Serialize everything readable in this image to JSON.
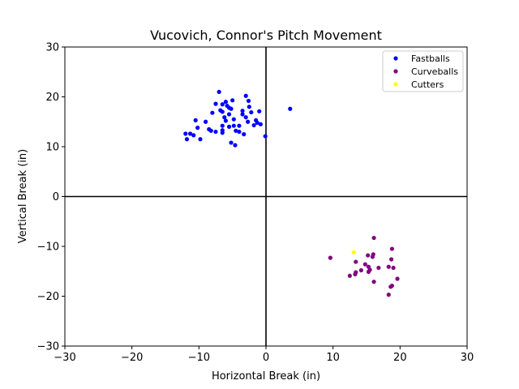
{
  "chart_data": {
    "type": "scatter",
    "title": "Vucovich, Connor's Pitch Movement",
    "xlabel": "Horizontal Break (in)",
    "ylabel": "Vertical Break (in)",
    "xlim": [
      -30,
      30
    ],
    "ylim": [
      -30,
      30
    ],
    "xticks": [
      -30,
      -20,
      -10,
      0,
      10,
      20,
      30
    ],
    "yticks": [
      -30,
      -20,
      -10,
      0,
      10,
      20,
      30
    ],
    "xtick_labels": [
      "−30",
      "−20",
      "−10",
      "0",
      "10",
      "20",
      "30"
    ],
    "ytick_labels": [
      "−30",
      "−20",
      "−10",
      "0",
      "10",
      "20",
      "30"
    ],
    "grid": false,
    "reference_lines": {
      "x": 0,
      "y": 0
    },
    "legend_position": "top-right",
    "series": [
      {
        "name": "Fastballs",
        "color": "#0000ff",
        "points": [
          [
            -7.0,
            21.0
          ],
          [
            -3.0,
            20.2
          ],
          [
            -6.0,
            19.0
          ],
          [
            -5.0,
            19.3
          ],
          [
            -2.6,
            19.2
          ],
          [
            -7.5,
            18.6
          ],
          [
            -6.5,
            18.5
          ],
          [
            -5.8,
            18.2
          ],
          [
            -5.5,
            17.8
          ],
          [
            -2.5,
            18.0
          ],
          [
            -6.8,
            17.3
          ],
          [
            -5.2,
            17.6
          ],
          [
            -3.5,
            17.2
          ],
          [
            -1.0,
            17.1
          ],
          [
            3.6,
            17.6
          ],
          [
            -6.5,
            17.0
          ],
          [
            -8.0,
            16.8
          ],
          [
            -5.5,
            16.5
          ],
          [
            -2.2,
            16.9
          ],
          [
            -3.5,
            16.5
          ],
          [
            -6.2,
            15.9
          ],
          [
            -3.0,
            15.9
          ],
          [
            -6.0,
            15.2
          ],
          [
            -4.8,
            15.5
          ],
          [
            -2.7,
            15.0
          ],
          [
            -1.5,
            15.3
          ],
          [
            -1.3,
            14.8
          ],
          [
            -0.8,
            14.5
          ],
          [
            -1.8,
            14.3
          ],
          [
            -10.5,
            15.3
          ],
          [
            -9.0,
            15.0
          ],
          [
            -6.5,
            14.2
          ],
          [
            -5.5,
            14.0
          ],
          [
            -4.8,
            14.2
          ],
          [
            -4.0,
            14.2
          ],
          [
            -10.2,
            13.8
          ],
          [
            -8.5,
            13.5
          ],
          [
            -8.2,
            13.2
          ],
          [
            -7.5,
            13.0
          ],
          [
            -6.5,
            13.3
          ],
          [
            -6.5,
            12.8
          ],
          [
            -4.5,
            13.2
          ],
          [
            -4.0,
            13.0
          ],
          [
            -3.3,
            12.5
          ],
          [
            -12.0,
            12.6
          ],
          [
            -11.3,
            12.6
          ],
          [
            -10.8,
            12.3
          ],
          [
            -11.8,
            11.5
          ],
          [
            -9.8,
            11.5
          ],
          [
            -0.1,
            12.1
          ],
          [
            -5.2,
            10.8
          ],
          [
            -4.6,
            10.3
          ]
        ]
      },
      {
        "name": "Curveballs",
        "color": "#800080",
        "points": [
          [
            16.1,
            -8.3
          ],
          [
            18.8,
            -10.5
          ],
          [
            9.6,
            -12.3
          ],
          [
            15.2,
            -11.8
          ],
          [
            16.0,
            -11.6
          ],
          [
            15.9,
            -12.1
          ],
          [
            13.4,
            -13.1
          ],
          [
            18.7,
            -12.6
          ],
          [
            14.8,
            -13.6
          ],
          [
            15.3,
            -14.1
          ],
          [
            16.8,
            -14.3
          ],
          [
            18.3,
            -14.1
          ],
          [
            19.0,
            -14.3
          ],
          [
            14.2,
            -14.8
          ],
          [
            15.5,
            -14.7
          ],
          [
            15.3,
            -15.1
          ],
          [
            13.4,
            -15.2
          ],
          [
            13.3,
            -15.6
          ],
          [
            12.5,
            -15.9
          ],
          [
            19.6,
            -16.5
          ],
          [
            16.1,
            -17.1
          ],
          [
            18.8,
            -17.9
          ],
          [
            18.6,
            -18.1
          ],
          [
            18.3,
            -19.7
          ]
        ]
      },
      {
        "name": "Cutters",
        "color": "#ffff00",
        "points": [
          [
            13.1,
            -11.2
          ]
        ]
      }
    ]
  }
}
